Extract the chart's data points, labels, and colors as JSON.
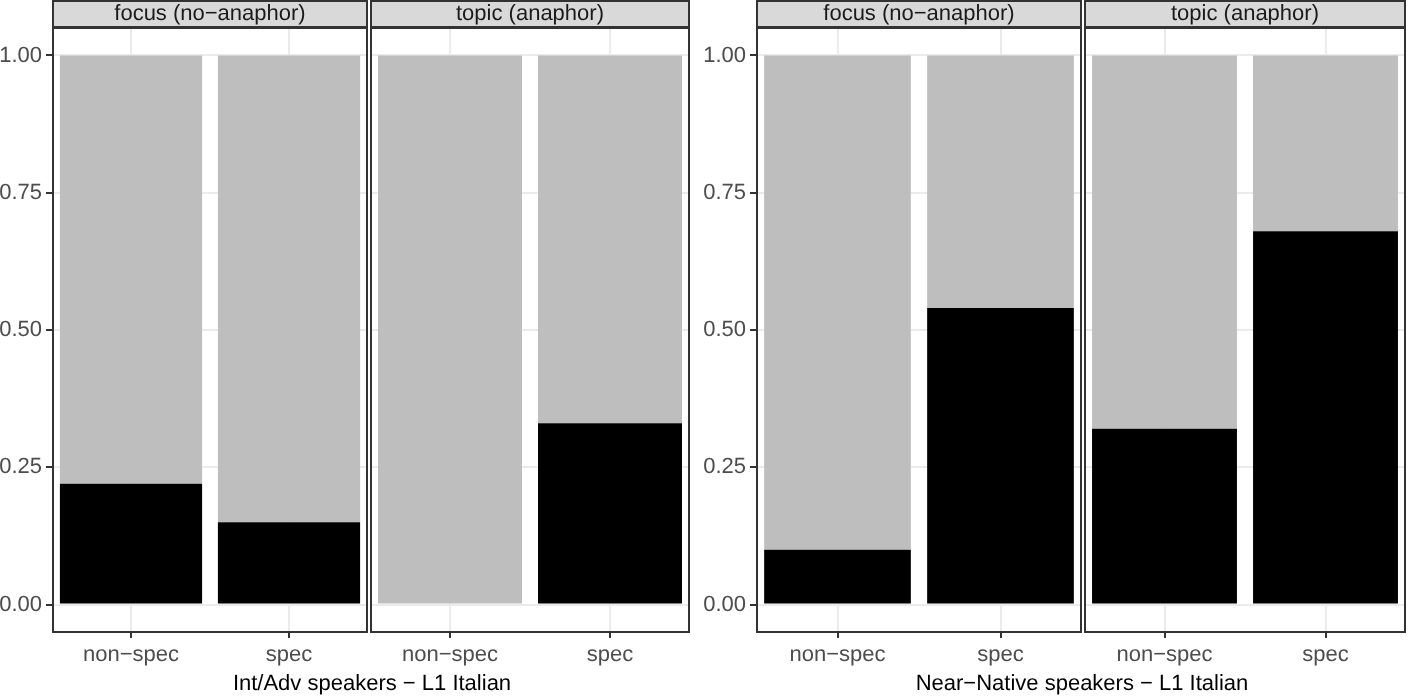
{
  "chart_data": [
    {
      "type": "bar",
      "title": "focus (no−anaphor)",
      "xlabel": "Int/Adv speakers − L1 Italian",
      "categories": [
        "non−spec",
        "spec"
      ],
      "stacked": true,
      "grid": true,
      "series": [
        {
          "color": "#000000",
          "values": [
            0.22,
            0.15
          ]
        },
        {
          "color": "#bebebe",
          "values": [
            0.78,
            0.85
          ]
        }
      ],
      "ylim": [
        -0.05,
        1.05
      ],
      "yticks": [
        {
          "value": 0,
          "label": "0.00"
        },
        {
          "value": 0.25,
          "label": "0.25"
        },
        {
          "value": 0.5,
          "label": "0.50"
        },
        {
          "value": 0.75,
          "label": "0.75"
        },
        {
          "value": 1,
          "label": "1.00"
        }
      ]
    },
    {
      "type": "bar",
      "title": "topic (anaphor)",
      "categories": [
        "non−spec",
        "spec"
      ],
      "stacked": true,
      "grid": true,
      "tick_labels": "x",
      "series": [
        {
          "color": "#000000",
          "values": [
            0,
            0.33
          ]
        },
        {
          "color": "#bebebe",
          "values": [
            1,
            0.67
          ]
        }
      ],
      "ylim": [
        -0.05,
        1.05
      ],
      "yticks": [
        {
          "value": 0,
          "label": null
        },
        {
          "value": 0.25,
          "label": null
        },
        {
          "value": 0.5,
          "label": null
        },
        {
          "value": 0.75,
          "label": null
        },
        {
          "value": 1,
          "label": null
        }
      ]
    },
    {
      "type": "bar",
      "title": "focus (no−anaphor)",
      "xlabel": "Near−Native speakers − L1 Italian",
      "categories": [
        "non−spec",
        "spec"
      ],
      "stacked": true,
      "grid": true,
      "series": [
        {
          "color": "#000000",
          "values": [
            0.1,
            0.54
          ]
        },
        {
          "color": "#bebebe",
          "values": [
            0.9,
            0.46
          ]
        }
      ],
      "ylim": [
        -0.05,
        1.05
      ],
      "yticks": [
        {
          "value": 0,
          "label": "0.00"
        },
        {
          "value": 0.25,
          "label": "0.25"
        },
        {
          "value": 0.5,
          "label": "0.50"
        },
        {
          "value": 0.75,
          "label": "0.75"
        },
        {
          "value": 1,
          "label": "1.00"
        }
      ]
    },
    {
      "type": "bar",
      "title": "topic (anaphor)",
      "categories": [
        "non−spec",
        "spec"
      ],
      "stacked": true,
      "grid": true,
      "tick_labels": "x",
      "series": [
        {
          "color": "#000000",
          "values": [
            0.32,
            0.68
          ]
        },
        {
          "color": "#bebebe",
          "values": [
            0.68,
            0.32
          ]
        }
      ],
      "ylim": [
        -0.05,
        1.05
      ],
      "yticks": [
        {
          "value": 0,
          "label": null
        },
        {
          "value": 0.25,
          "label": null
        },
        {
          "value": 0.5,
          "label": null
        },
        {
          "value": 0.75,
          "label": null
        },
        {
          "value": 1,
          "label": null
        }
      ]
    }
  ]
}
